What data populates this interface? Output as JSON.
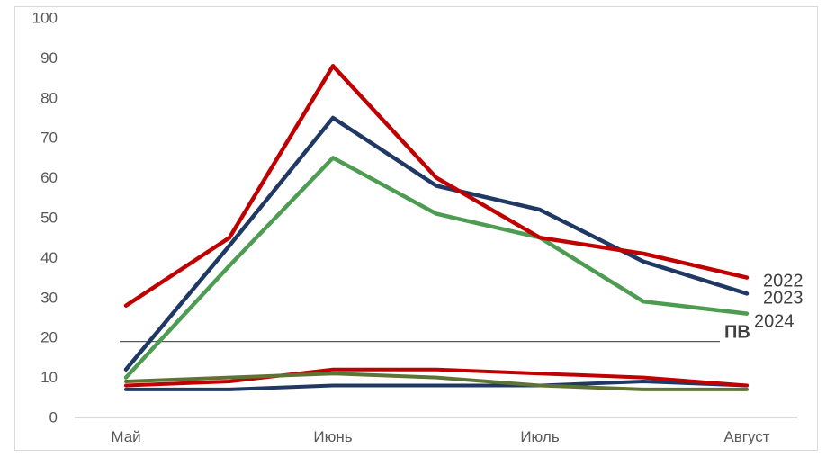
{
  "chart_data": {
    "type": "line",
    "title": "",
    "x_axis": {
      "tick_labels": [
        "Май",
        "Июнь",
        "Июль",
        "Август"
      ],
      "points_between_labels": 1
    },
    "y_axis": {
      "min": 0,
      "max": 100,
      "step": 10,
      "tick_labels": [
        "0",
        "10",
        "20",
        "30",
        "40",
        "50",
        "60",
        "70",
        "80",
        "90",
        "100"
      ]
    },
    "categories": [
      "Май",
      "",
      "Июнь",
      "",
      "Июль",
      "",
      "Август"
    ],
    "series": [
      {
        "label": "2023",
        "color": "#1F3864",
        "stroke_width": 4.5,
        "values": [
          12,
          43,
          75,
          58,
          52,
          39,
          31
        ]
      },
      {
        "label": "2024",
        "color": "#4E9B52",
        "stroke_width": 4.5,
        "values": [
          10,
          38,
          65,
          51,
          45,
          29,
          26
        ]
      },
      {
        "label": "2022",
        "color": "#C00000",
        "stroke_width": 4.5,
        "values": [
          28,
          45,
          88,
          60,
          45,
          41,
          35
        ]
      },
      {
        "label": "",
        "color": "#1F3864",
        "stroke_width": 4,
        "values": [
          7,
          7,
          8,
          8,
          8,
          9,
          8
        ]
      },
      {
        "label": "",
        "color": "#C00000",
        "stroke_width": 4,
        "values": [
          8,
          9,
          12,
          12,
          11,
          10,
          8
        ]
      },
      {
        "label": "",
        "color": "#5E7434",
        "stroke_width": 4,
        "values": [
          9,
          10,
          11,
          10,
          8,
          7,
          7
        ]
      }
    ],
    "reference_line": {
      "label": "ПВ",
      "value": 19
    },
    "legend_position": "right-of-line-ends",
    "grid": false
  },
  "colors": {
    "background": "#FFFFFF",
    "border": "#D9D9D9",
    "axis_line": "#D9D9D9",
    "axis_text": "#595959",
    "annotation_text": "#404040",
    "reference_line": "#595959"
  }
}
